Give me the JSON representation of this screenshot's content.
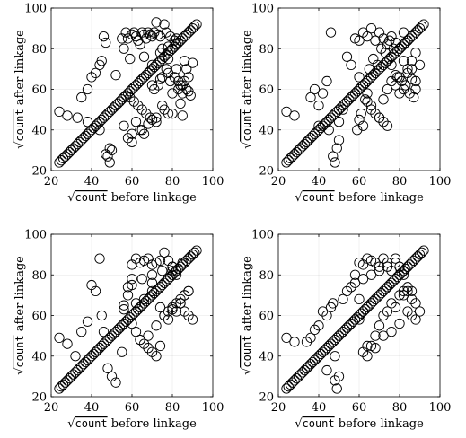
{
  "chart_data": [
    {
      "type": "scatter",
      "panel": "top-left",
      "xlabel_prefix": "count",
      "xlabel_suffix": "before linkage",
      "ylabel_prefix": "count",
      "ylabel_suffix": "after linkage",
      "xlim": [
        20,
        100
      ],
      "ylim": [
        20,
        100
      ],
      "xticks": [
        20,
        40,
        60,
        80,
        100
      ],
      "yticks": [
        20,
        40,
        60,
        80,
        100
      ],
      "grid": true,
      "diagonal_points": [
        24,
        25,
        26,
        27,
        28,
        29,
        30,
        31,
        32,
        33,
        34,
        35,
        36,
        37,
        38,
        39,
        40,
        41,
        42,
        43,
        44,
        45,
        46,
        47,
        48,
        49,
        50,
        51,
        52,
        53,
        54,
        55,
        56,
        57,
        58,
        59,
        60,
        61,
        62,
        63,
        64,
        65,
        66,
        67,
        68,
        69,
        70,
        71,
        72,
        73,
        74,
        75,
        76,
        77,
        78,
        79,
        80,
        81,
        82,
        83,
        84,
        85,
        86,
        87,
        88,
        89,
        90,
        91,
        92
      ],
      "x": [
        24,
        28,
        33,
        35,
        38,
        40,
        42,
        44,
        45,
        46,
        47,
        48,
        49,
        50,
        38,
        44,
        47,
        49,
        52,
        55,
        56,
        57,
        58,
        59,
        60,
        61,
        62,
        63,
        64,
        65,
        66,
        67,
        68,
        69,
        70,
        71,
        72,
        73,
        74,
        75,
        76,
        77,
        78,
        79,
        80,
        81,
        82,
        83,
        84,
        85,
        86,
        87,
        88,
        89,
        90,
        59,
        61,
        63,
        65,
        67,
        69,
        71,
        73,
        75,
        77,
        79,
        81,
        83,
        85,
        87,
        60,
        64,
        68,
        72,
        76,
        80,
        84,
        88,
        56,
        62,
        70,
        74,
        78,
        82,
        86,
        60,
        65,
        70,
        75,
        80,
        85,
        58,
        66,
        72,
        78,
        84,
        66,
        70,
        74,
        78
      ],
      "y": [
        49,
        47,
        46,
        56,
        60,
        66,
        68,
        72,
        74,
        86,
        83,
        27,
        24,
        30,
        44,
        40,
        28,
        31,
        67,
        85,
        80,
        88,
        85,
        75,
        87,
        88,
        86,
        84,
        82,
        88,
        87,
        85,
        88,
        87,
        86,
        88,
        93,
        87,
        86,
        80,
        92,
        88,
        81,
        86,
        80,
        84,
        85,
        60,
        62,
        58,
        64,
        60,
        59,
        57,
        73,
        56,
        54,
        52,
        50,
        48,
        46,
        60,
        62,
        66,
        70,
        64,
        66,
        64,
        62,
        70,
        38,
        40,
        43,
        46,
        50,
        48,
        62,
        66,
        42,
        44,
        62,
        65,
        68,
        70,
        74,
        34,
        40,
        45,
        52,
        58,
        47,
        36,
        38,
        44,
        48,
        53,
        76,
        72,
        78,
        75
      ]
    },
    {
      "type": "scatter",
      "panel": "top-right",
      "xlabel_prefix": "count",
      "xlabel_suffix": "before linkage",
      "ylabel_prefix": "count",
      "ylabel_suffix": "after linkage",
      "xlim": [
        20,
        100
      ],
      "ylim": [
        20,
        100
      ],
      "xticks": [
        20,
        40,
        60,
        80,
        100
      ],
      "yticks": [
        20,
        40,
        60,
        80,
        100
      ],
      "grid": true,
      "diagonal_points": [
        24,
        25,
        26,
        27,
        28,
        29,
        30,
        31,
        32,
        33,
        34,
        35,
        36,
        37,
        38,
        39,
        40,
        41,
        42,
        43,
        44,
        45,
        46,
        47,
        48,
        49,
        50,
        51,
        52,
        53,
        54,
        55,
        56,
        57,
        58,
        59,
        60,
        61,
        62,
        63,
        64,
        65,
        66,
        67,
        68,
        69,
        70,
        71,
        72,
        73,
        74,
        75,
        76,
        77,
        78,
        79,
        80,
        81,
        82,
        83,
        84,
        85,
        86,
        87,
        88,
        89,
        90,
        91,
        92
      ],
      "x": [
        24,
        28,
        36,
        38,
        40,
        42,
        44,
        46,
        47,
        48,
        49,
        50,
        40,
        45,
        50,
        52,
        54,
        56,
        58,
        60,
        62,
        64,
        66,
        68,
        70,
        72,
        74,
        76,
        78,
        80,
        82,
        84,
        86,
        88,
        90,
        60,
        62,
        64,
        66,
        68,
        70,
        72,
        74,
        76,
        78,
        80,
        82,
        84,
        86,
        88,
        59,
        61,
        63,
        65,
        67,
        69,
        71,
        73,
        75,
        77,
        79,
        81,
        83,
        85,
        87,
        60,
        66,
        72,
        78,
        84,
        62,
        70,
        76,
        82,
        88,
        64,
        74,
        80,
        86
      ],
      "y": [
        49,
        47,
        56,
        60,
        52,
        58,
        64,
        88,
        27,
        24,
        31,
        35,
        42,
        40,
        44,
        50,
        76,
        72,
        85,
        84,
        88,
        86,
        90,
        84,
        88,
        85,
        82,
        86,
        83,
        80,
        88,
        84,
        70,
        64,
        72,
        66,
        62,
        58,
        52,
        48,
        46,
        44,
        42,
        64,
        62,
        58,
        60,
        68,
        65,
        60,
        40,
        48,
        55,
        70,
        75,
        72,
        80,
        78,
        84,
        80,
        66,
        64,
        62,
        58,
        56,
        45,
        50,
        55,
        67,
        70,
        42,
        46,
        72,
        74,
        78,
        54,
        60,
        66,
        74
      ]
    },
    {
      "type": "scatter",
      "panel": "bottom-left",
      "xlabel_prefix": "count",
      "xlabel_suffix": "before linkage",
      "ylabel_prefix": "count",
      "ylabel_suffix": "after linkage",
      "xlim": [
        20,
        100
      ],
      "ylim": [
        20,
        100
      ],
      "xticks": [
        20,
        40,
        60,
        80,
        100
      ],
      "yticks": [
        20,
        40,
        60,
        80,
        100
      ],
      "grid": true,
      "diagonal_points": [
        24,
        25,
        26,
        27,
        28,
        29,
        30,
        31,
        32,
        33,
        34,
        35,
        36,
        37,
        38,
        39,
        40,
        41,
        42,
        43,
        44,
        45,
        46,
        47,
        48,
        49,
        50,
        51,
        52,
        53,
        54,
        55,
        56,
        57,
        58,
        59,
        60,
        61,
        62,
        63,
        64,
        65,
        66,
        67,
        68,
        69,
        70,
        71,
        72,
        73,
        74,
        75,
        76,
        77,
        78,
        79,
        80,
        81,
        82,
        83,
        84,
        85,
        86,
        87,
        88,
        89,
        90,
        91,
        92
      ],
      "x": [
        24,
        28,
        32,
        35,
        38,
        40,
        42,
        44,
        45,
        46,
        48,
        50,
        52,
        55,
        56,
        58,
        60,
        62,
        64,
        66,
        68,
        70,
        72,
        74,
        76,
        78,
        80,
        82,
        84,
        86,
        88,
        90,
        60,
        62,
        64,
        66,
        68,
        70,
        72,
        74,
        76,
        78,
        80,
        82,
        84,
        86,
        88,
        56,
        58,
        60,
        65,
        70,
        75,
        80,
        85,
        62,
        66,
        70,
        74,
        78,
        82,
        86,
        64,
        68,
        72,
        76,
        80,
        84,
        88,
        60,
        70,
        80
      ],
      "y": [
        49,
        46,
        40,
        52,
        57,
        75,
        72,
        88,
        60,
        52,
        34,
        30,
        27,
        42,
        63,
        74,
        85,
        88,
        86,
        87,
        88,
        85,
        86,
        87,
        91,
        87,
        84,
        80,
        66,
        62,
        60,
        58,
        56,
        52,
        48,
        46,
        44,
        42,
        40,
        45,
        60,
        62,
        64,
        66,
        68,
        70,
        72,
        65,
        70,
        75,
        78,
        80,
        82,
        84,
        86,
        66,
        68,
        72,
        64,
        58,
        62,
        70,
        48,
        50,
        55,
        60,
        63,
        66,
        72,
        78,
        76,
        82
      ]
    },
    {
      "type": "scatter",
      "panel": "bottom-right",
      "xlabel_prefix": "count",
      "xlabel_suffix": "before linkage",
      "ylabel_prefix": "count",
      "ylabel_suffix": "after linkage",
      "xlim": [
        20,
        100
      ],
      "ylim": [
        20,
        100
      ],
      "xticks": [
        20,
        40,
        60,
        80,
        100
      ],
      "yticks": [
        20,
        40,
        60,
        80,
        100
      ],
      "grid": true,
      "diagonal_points": [
        24,
        25,
        26,
        27,
        28,
        29,
        30,
        31,
        32,
        33,
        34,
        35,
        36,
        37,
        38,
        39,
        40,
        41,
        42,
        43,
        44,
        45,
        46,
        47,
        48,
        49,
        50,
        51,
        52,
        53,
        54,
        55,
        56,
        57,
        58,
        59,
        60,
        61,
        62,
        63,
        64,
        65,
        66,
        67,
        68,
        69,
        70,
        71,
        72,
        73,
        74,
        75,
        76,
        77,
        78,
        79,
        80,
        81,
        82,
        83,
        84,
        85,
        86,
        87,
        88,
        89,
        90,
        91,
        92
      ],
      "x": [
        24,
        28,
        34,
        36,
        38,
        40,
        42,
        44,
        46,
        47,
        48,
        49,
        50,
        52,
        54,
        56,
        58,
        60,
        62,
        64,
        66,
        68,
        70,
        72,
        74,
        76,
        78,
        80,
        82,
        84,
        86,
        88,
        90,
        60,
        62,
        64,
        66,
        68,
        70,
        72,
        74,
        76,
        78,
        80,
        82,
        84,
        86,
        88,
        58,
        62,
        66,
        70,
        74,
        78,
        82,
        86,
        60,
        64,
        68,
        72,
        76,
        80,
        84,
        44,
        48
      ],
      "y": [
        49,
        47,
        47,
        49,
        53,
        55,
        62,
        60,
        64,
        66,
        28,
        24,
        30,
        68,
        72,
        74,
        80,
        86,
        85,
        88,
        87,
        86,
        84,
        88,
        86,
        82,
        88,
        84,
        80,
        72,
        68,
        66,
        62,
        58,
        42,
        40,
        45,
        50,
        55,
        60,
        62,
        66,
        64,
        70,
        72,
        74,
        60,
        58,
        76,
        78,
        80,
        82,
        84,
        86,
        70,
        72,
        68,
        45,
        44,
        50,
        52,
        56,
        62,
        33,
        40
      ]
    }
  ]
}
